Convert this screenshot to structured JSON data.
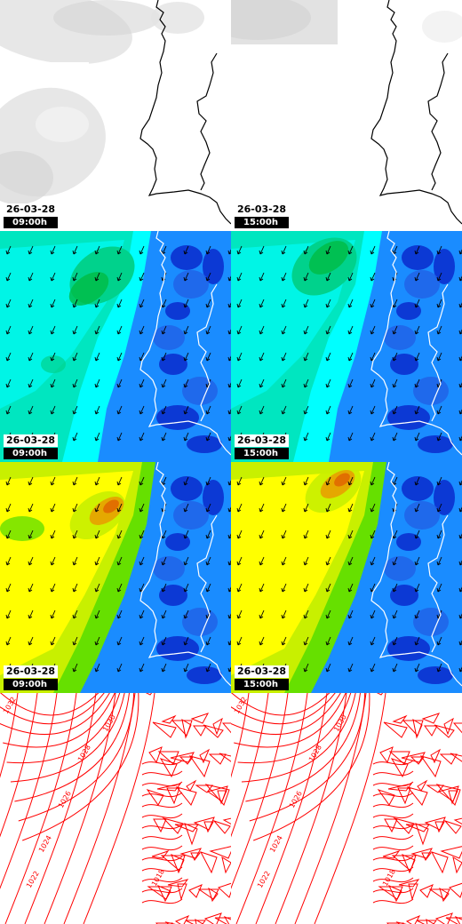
{
  "columns": [
    {
      "date": "26-03-28",
      "time": "09:00h"
    },
    {
      "date": "26-03-28",
      "time": "15:00h"
    }
  ],
  "rows": [
    {
      "name": "cloud-cover",
      "colors": [
        "#ffffff",
        "#f2f2f2",
        "#e4e4e4",
        "#d6d6d6"
      ]
    },
    {
      "name": "wind-speed",
      "colors": [
        "#00ffff",
        "#00e6c0",
        "#00d28c",
        "#00bb44",
        "#1a8cff",
        "#2060e6",
        "#0a2acc"
      ]
    },
    {
      "name": "wind-gusts",
      "colors": [
        "#ffff00",
        "#c8f000",
        "#66e000",
        "#e8a000",
        "#1a8cff",
        "#2060e6",
        "#0a2acc"
      ]
    },
    {
      "name": "sea-level-pressure",
      "colors": [
        "#ff0000"
      ]
    }
  ],
  "isobar_labels": {
    "left": [
      "1032",
      "1030",
      "1028",
      "1026",
      "1024",
      "1022",
      "1018"
    ],
    "right": [
      "1032",
      "1030",
      "1028",
      "1026",
      "1024",
      "1022",
      "1018"
    ]
  },
  "icons": {
    "wind": "wind-arrow-icon",
    "coast": "coastline"
  }
}
